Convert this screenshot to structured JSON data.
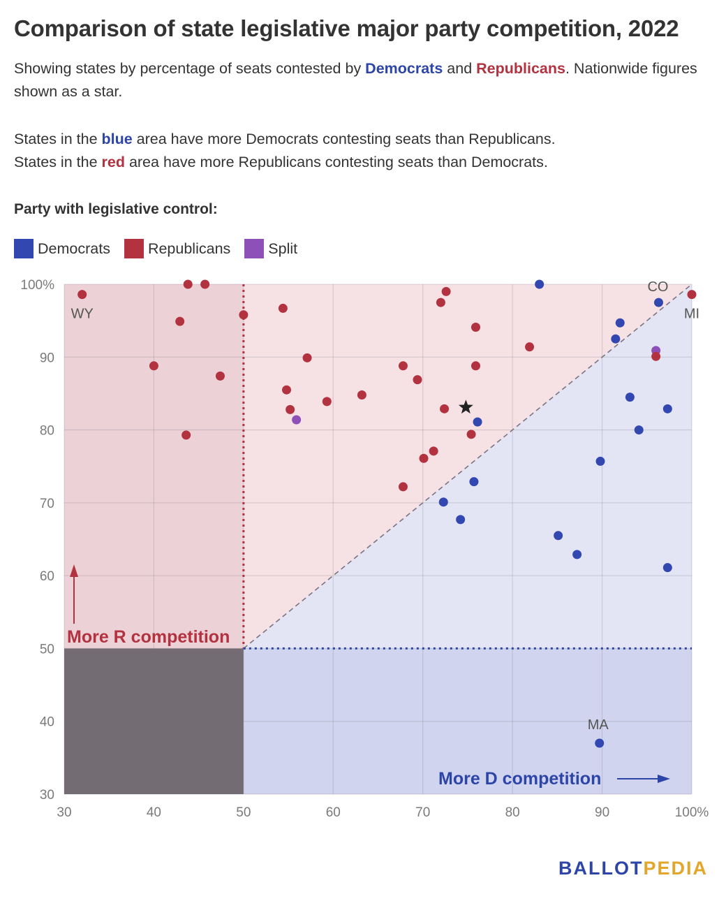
{
  "header": {
    "title": "Comparison of state legislative major party competition, 2022",
    "p1": {
      "s1": "Showing states by percentage of seats contested by ",
      "dem": "Democrats",
      "s2": " and ",
      "rep": "Republicans",
      "s3": ". Nationwide figures shown as a star."
    },
    "p2": {
      "l1a": "States in the ",
      "blue": "blue",
      "l1b": " area have more Democrats contesting seats than Republicans.",
      "l2a": "States in the ",
      "red": "red",
      "l2b": " area have more Republicans contesting seats than Democrats."
    }
  },
  "legend": {
    "title": "Party with legislative control:",
    "items": [
      {
        "label": "Democrats",
        "color": "#3347b0"
      },
      {
        "label": "Republicans",
        "color": "#b23240"
      },
      {
        "label": "Split",
        "color": "#8c50b8"
      }
    ]
  },
  "logo": {
    "part1": "BALLOT",
    "part2": "PEDIA"
  },
  "chart_data": {
    "type": "scatter",
    "xlim": [
      30,
      100
    ],
    "ylim": [
      30,
      100
    ],
    "x_ticks": [
      "30",
      "40",
      "50",
      "60",
      "70",
      "80",
      "90",
      "100%"
    ],
    "y_ticks": [
      "30",
      "40",
      "50",
      "60",
      "70",
      "80",
      "90",
      "100%"
    ],
    "grid": true,
    "annotations": {
      "more_r": "More R competition",
      "more_d": "More D competition"
    },
    "colors": {
      "D": "#3347b0",
      "R": "#b23240",
      "S": "#8c50b8"
    },
    "points": [
      {
        "x": 32,
        "y": 98.6,
        "party": "R",
        "label": "WY"
      },
      {
        "x": 43.8,
        "y": 100,
        "party": "R"
      },
      {
        "x": 45.7,
        "y": 100,
        "party": "R"
      },
      {
        "x": 42.9,
        "y": 94.9,
        "party": "R"
      },
      {
        "x": 40,
        "y": 88.8,
        "party": "R"
      },
      {
        "x": 47.4,
        "y": 87.4,
        "party": "R"
      },
      {
        "x": 43.6,
        "y": 79.3,
        "party": "R"
      },
      {
        "x": 50,
        "y": 95.8,
        "party": "R"
      },
      {
        "x": 54.4,
        "y": 96.7,
        "party": "R"
      },
      {
        "x": 57.1,
        "y": 89.9,
        "party": "R"
      },
      {
        "x": 54.8,
        "y": 85.5,
        "party": "R"
      },
      {
        "x": 55.2,
        "y": 82.8,
        "party": "R"
      },
      {
        "x": 55.9,
        "y": 81.4,
        "party": "S"
      },
      {
        "x": 59.3,
        "y": 83.9,
        "party": "R"
      },
      {
        "x": 63.2,
        "y": 84.8,
        "party": "R"
      },
      {
        "x": 67.8,
        "y": 88.8,
        "party": "R"
      },
      {
        "x": 69.4,
        "y": 86.9,
        "party": "R"
      },
      {
        "x": 72.4,
        "y": 82.9,
        "party": "R"
      },
      {
        "x": 72.6,
        "y": 99,
        "party": "R"
      },
      {
        "x": 72.0,
        "y": 97.5,
        "party": "R"
      },
      {
        "x": 75.9,
        "y": 94.1,
        "party": "R"
      },
      {
        "x": 75.9,
        "y": 88.8,
        "party": "R"
      },
      {
        "x": 76.1,
        "y": 81.1,
        "party": "D"
      },
      {
        "x": 75.4,
        "y": 79.4,
        "party": "R"
      },
      {
        "x": 71.2,
        "y": 77.1,
        "party": "R"
      },
      {
        "x": 70.1,
        "y": 76.1,
        "party": "R"
      },
      {
        "x": 67.8,
        "y": 72.2,
        "party": "R"
      },
      {
        "x": 75.7,
        "y": 72.9,
        "party": "D"
      },
      {
        "x": 72.3,
        "y": 70.1,
        "party": "D"
      },
      {
        "x": 74.2,
        "y": 67.7,
        "party": "D"
      },
      {
        "x": 81.9,
        "y": 91.4,
        "party": "R"
      },
      {
        "x": 83,
        "y": 100,
        "party": "D"
      },
      {
        "x": 96.3,
        "y": 97.5,
        "party": "D",
        "label": "CO"
      },
      {
        "x": 100,
        "y": 98.6,
        "party": "R",
        "label": "MI"
      },
      {
        "x": 92.0,
        "y": 94.7,
        "party": "D"
      },
      {
        "x": 91.5,
        "y": 92.5,
        "party": "D"
      },
      {
        "x": 96.0,
        "y": 90.9,
        "party": "S"
      },
      {
        "x": 96.0,
        "y": 90.1,
        "party": "R"
      },
      {
        "x": 93.1,
        "y": 84.5,
        "party": "D"
      },
      {
        "x": 97.3,
        "y": 82.9,
        "party": "D"
      },
      {
        "x": 94.1,
        "y": 80.0,
        "party": "D"
      },
      {
        "x": 89.8,
        "y": 75.7,
        "party": "D"
      },
      {
        "x": 85.1,
        "y": 65.5,
        "party": "D"
      },
      {
        "x": 87.2,
        "y": 62.9,
        "party": "D"
      },
      {
        "x": 97.3,
        "y": 61.1,
        "party": "D"
      },
      {
        "x": 89.7,
        "y": 37.0,
        "party": "D",
        "label": "MA"
      }
    ],
    "national": {
      "x": 74.8,
      "y": 83.1
    }
  }
}
